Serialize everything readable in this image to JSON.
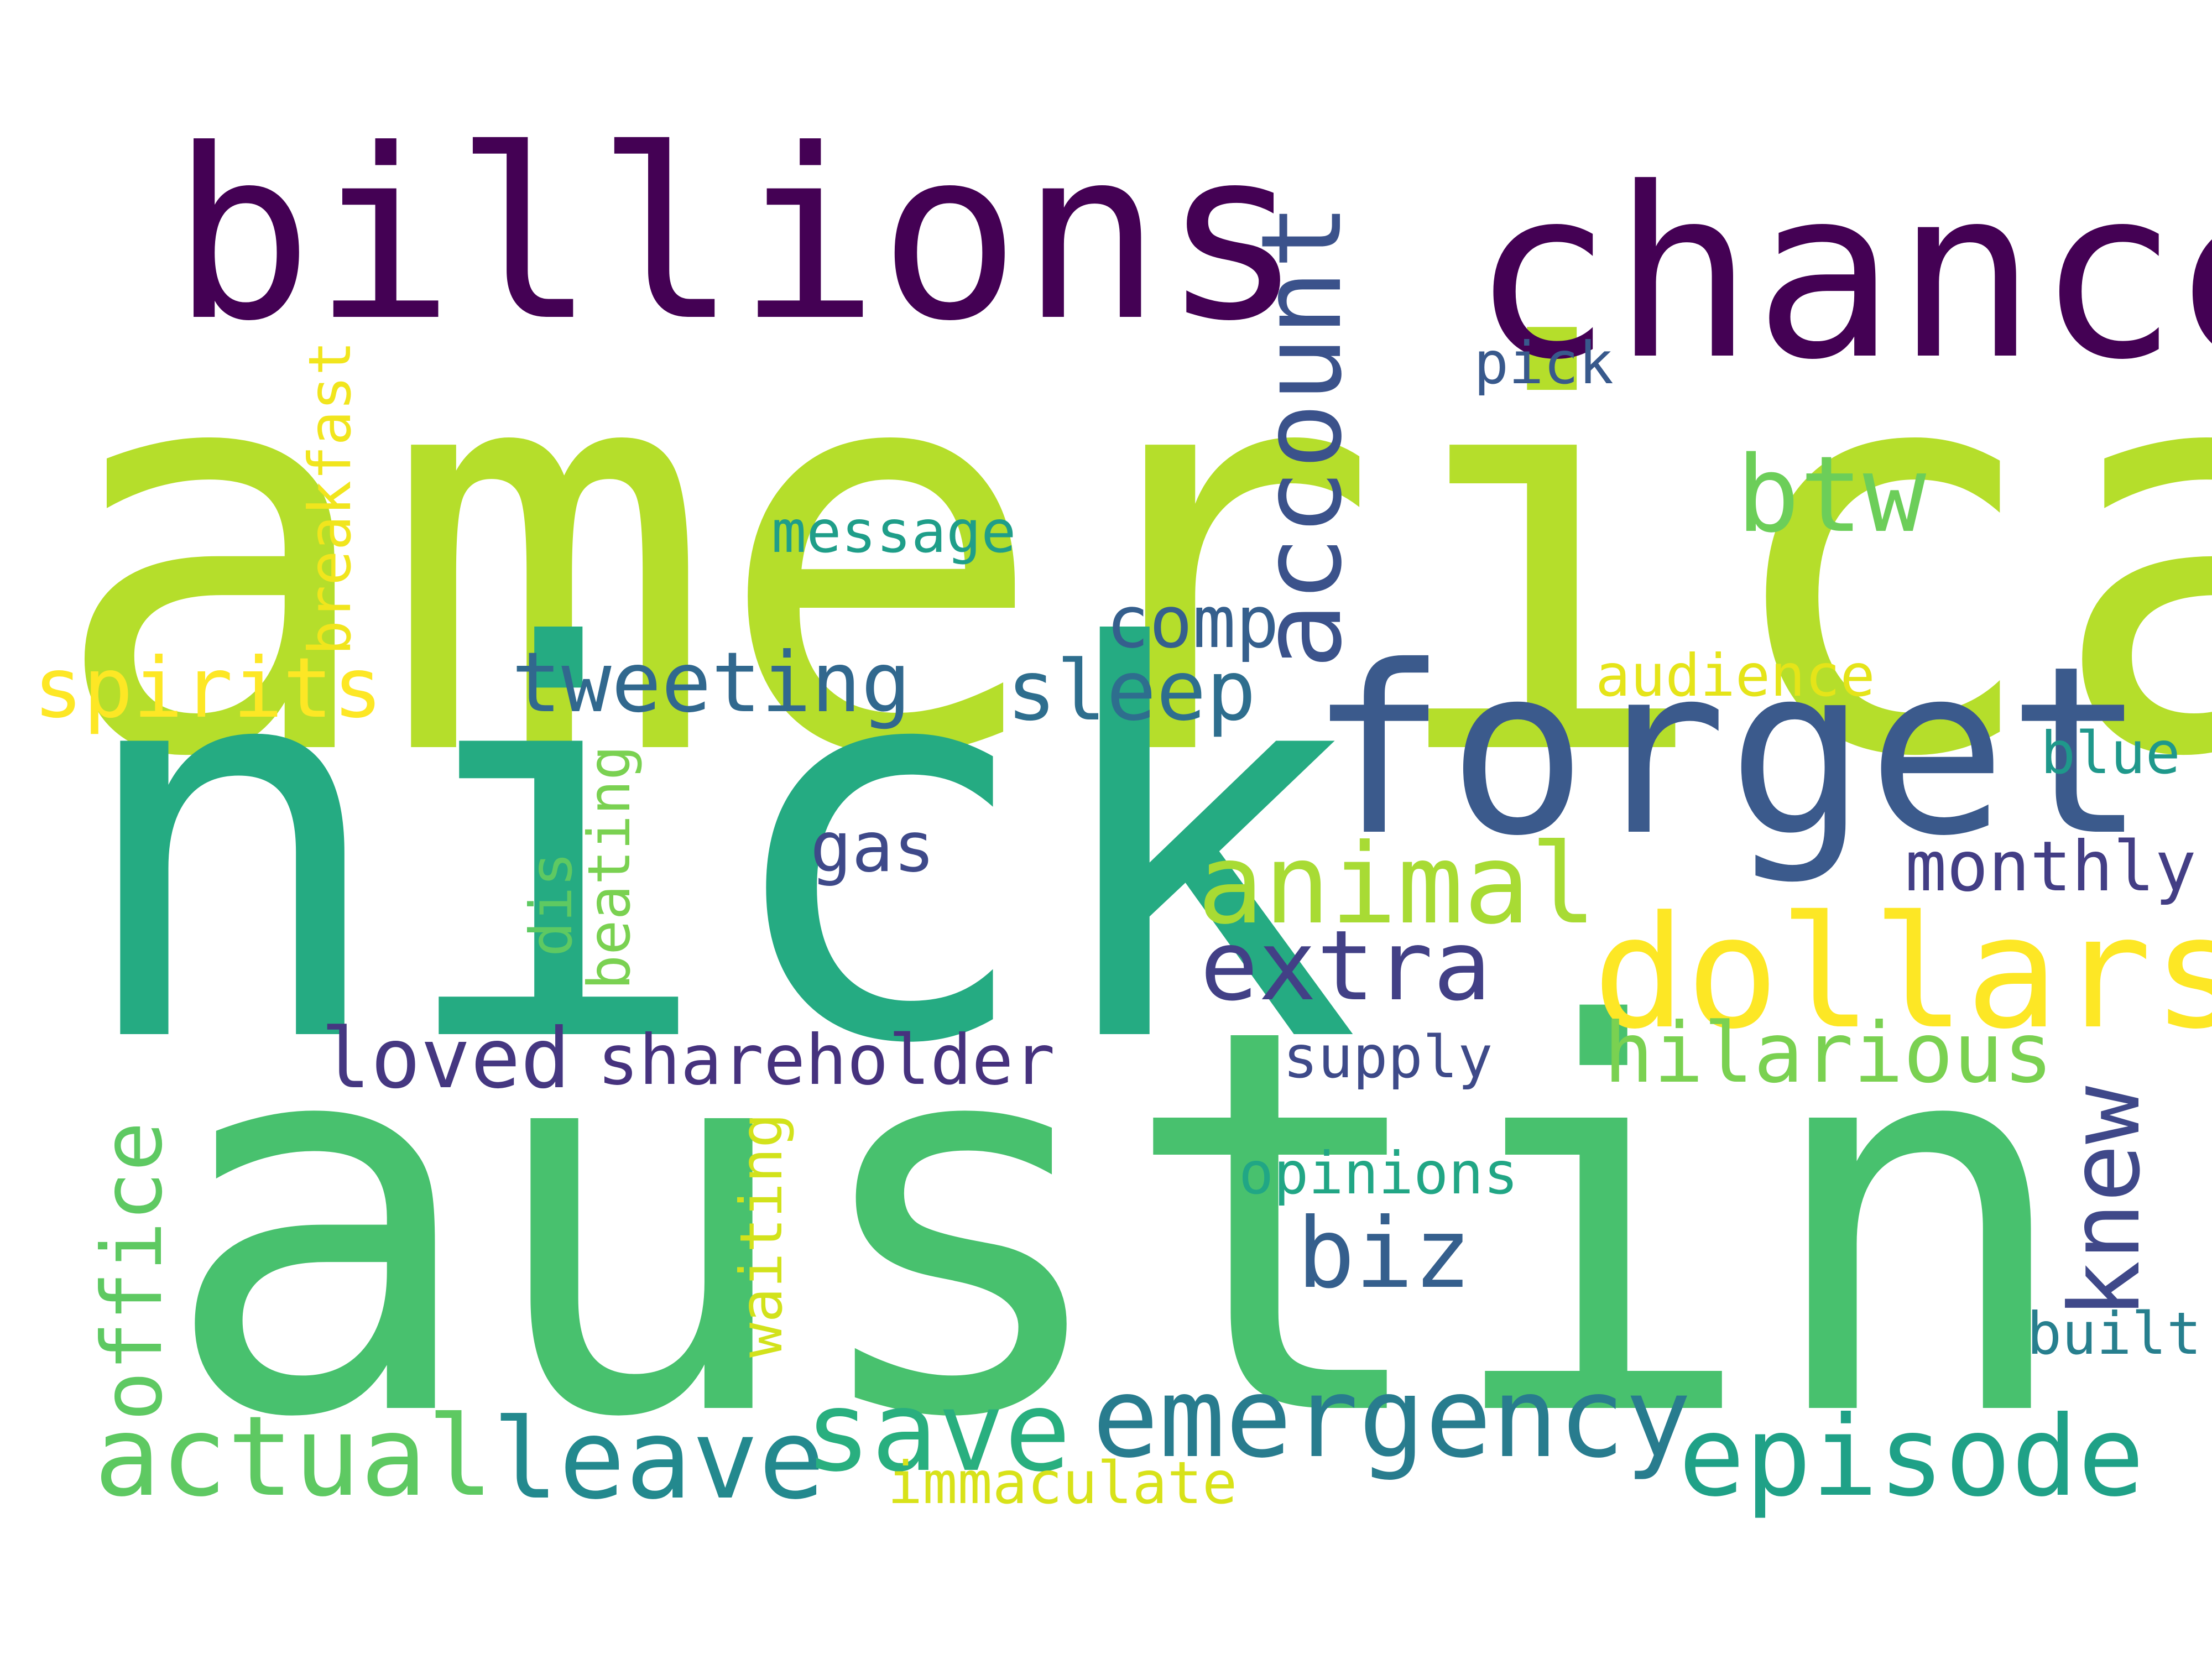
{
  "words": [
    {
      "text": "america",
      "color": "#b5de2b"
    },
    {
      "text": "austin",
      "color": "#48c16e"
    },
    {
      "text": "nick",
      "color": "#25ab82"
    },
    {
      "text": "billions",
      "color": "#440154"
    },
    {
      "text": "chance",
      "color": "#440154"
    },
    {
      "text": "forget",
      "color": "#3b5a8c"
    },
    {
      "text": "dollars",
      "color": "#fde725"
    },
    {
      "text": "account",
      "color": "#3b528b"
    },
    {
      "text": "btw",
      "color": "#6cce59"
    },
    {
      "text": "pick",
      "color": "#38598c"
    },
    {
      "text": "message",
      "color": "#1f9e89"
    },
    {
      "text": "comp",
      "color": "#355f8d"
    },
    {
      "text": "breakfast",
      "color": "#f1e51d"
    },
    {
      "text": "spirits",
      "color": "#fde725"
    },
    {
      "text": "tweeting",
      "color": "#31688e"
    },
    {
      "text": "sleep",
      "color": "#2e6e8e"
    },
    {
      "text": "audience",
      "color": "#e5e419"
    },
    {
      "text": "blue",
      "color": "#1f988b"
    },
    {
      "text": "beating",
      "color": "#7ad151"
    },
    {
      "text": "dis",
      "color": "#5ec962"
    },
    {
      "text": "gas",
      "color": "#3e4989"
    },
    {
      "text": "animal",
      "color": "#a8db34"
    },
    {
      "text": "monthly",
      "color": "#433e85"
    },
    {
      "text": "extra",
      "color": "#424086"
    },
    {
      "text": "loved",
      "color": "#453781"
    },
    {
      "text": "shareholder",
      "color": "#46327e"
    },
    {
      "text": "supply",
      "color": "#3e4a89"
    },
    {
      "text": "hilarious",
      "color": "#7ad151"
    },
    {
      "text": "office",
      "color": "#5ec962"
    },
    {
      "text": "knew",
      "color": "#3f4889"
    },
    {
      "text": "waiting",
      "color": "#d2e21b"
    },
    {
      "text": "opinions",
      "color": "#21a685"
    },
    {
      "text": "biz",
      "color": "#355f8d"
    },
    {
      "text": "built",
      "color": "#277f8e"
    },
    {
      "text": "actual",
      "color": "#5ec962"
    },
    {
      "text": "leave",
      "color": "#23898e"
    },
    {
      "text": "save",
      "color": "#29af7f"
    },
    {
      "text": "emergency",
      "color": "#287c8e"
    },
    {
      "text": "episode",
      "color": "#1fa187"
    },
    {
      "text": "immaculate",
      "color": "#d8e219"
    }
  ]
}
